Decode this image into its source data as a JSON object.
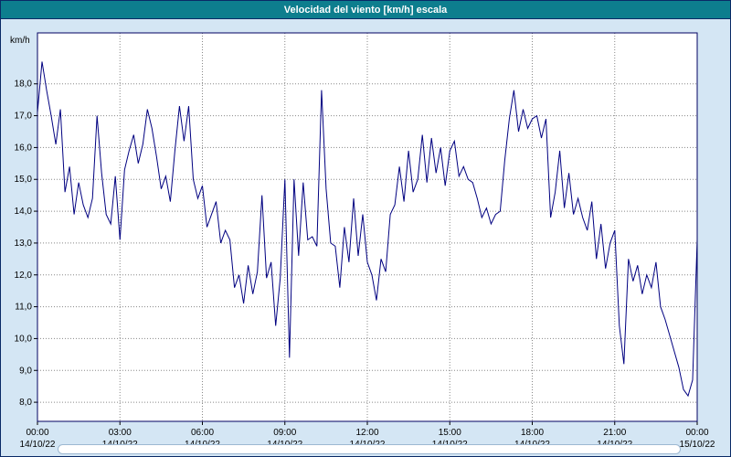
{
  "title": "Velocidad del viento [km/h] escala",
  "y_unit_label": "km/h",
  "colors": {
    "titlebar": "#0d7e8e",
    "titlebar_text": "#ffffff",
    "page_background": "#d4e6f4",
    "plot_background": "#ffffff",
    "line": "#000080",
    "grid": "#888888",
    "plot_border": "#000060",
    "axis_text": "#000000"
  },
  "chart_data": {
    "type": "line",
    "title": "Velocidad del viento [km/h] escala",
    "xlabel": "",
    "ylabel": "km/h",
    "grid": true,
    "legend_position": "none",
    "x_hours_start": 0,
    "x_hours_end": 24,
    "sample_interval_minutes": 10,
    "ylim": [
      7.4,
      19.6
    ],
    "y_ticks": [
      8,
      9,
      10,
      11,
      12,
      13,
      14,
      15,
      16,
      17,
      18
    ],
    "y_tick_labels": [
      "8,0",
      "9,0",
      "10,0",
      "11,0",
      "12,0",
      "13,0",
      "14,0",
      "15,0",
      "16,0",
      "17,0",
      "18,0"
    ],
    "x_ticks_hours": [
      0,
      3,
      6,
      9,
      12,
      15,
      18,
      21,
      24
    ],
    "x_tick_time_labels": [
      "00:00",
      "03:00",
      "06:00",
      "09:00",
      "12:00",
      "15:00",
      "18:00",
      "21:00",
      "00:00"
    ],
    "x_tick_date_labels": [
      "14/10/22",
      "14/10/22",
      "14/10/22",
      "14/10/22",
      "14/10/22",
      "14/10/22",
      "14/10/22",
      "14/10/22",
      "15/10/22"
    ],
    "values": [
      17.1,
      18.7,
      17.8,
      17.0,
      16.1,
      17.2,
      14.6,
      15.4,
      13.9,
      14.9,
      14.2,
      13.8,
      14.4,
      17.0,
      15.2,
      13.9,
      13.6,
      15.1,
      13.1,
      15.3,
      15.9,
      16.4,
      15.5,
      16.1,
      17.2,
      16.6,
      15.7,
      14.7,
      15.1,
      14.3,
      15.9,
      17.3,
      16.2,
      17.3,
      15.0,
      14.4,
      14.8,
      13.5,
      13.9,
      14.3,
      13.0,
      13.4,
      13.1,
      11.6,
      12.0,
      11.1,
      12.3,
      11.4,
      12.1,
      14.5,
      11.9,
      12.4,
      10.4,
      11.9,
      15.0,
      9.4,
      15.0,
      12.6,
      14.9,
      13.1,
      13.2,
      12.9,
      17.8,
      14.7,
      13.0,
      12.9,
      11.6,
      13.5,
      12.4,
      14.4,
      12.6,
      13.9,
      12.4,
      12.0,
      11.2,
      12.5,
      12.1,
      13.9,
      14.2,
      15.4,
      14.3,
      15.9,
      14.6,
      15.0,
      16.4,
      14.9,
      16.3,
      15.2,
      16.0,
      14.8,
      15.9,
      16.2,
      15.1,
      15.4,
      15.0,
      14.9,
      14.4,
      13.8,
      14.1,
      13.6,
      13.9,
      14.0,
      15.6,
      16.9,
      17.8,
      16.5,
      17.2,
      16.6,
      16.9,
      17.0,
      16.3,
      16.9,
      13.8,
      14.6,
      15.9,
      14.1,
      15.2,
      13.9,
      14.4,
      13.8,
      13.4,
      14.3,
      12.5,
      13.6,
      12.2,
      13.0,
      13.4,
      10.4,
      9.2,
      12.5,
      11.8,
      12.3,
      11.4,
      12.0,
      11.6,
      12.4,
      11.0,
      10.6,
      10.1,
      9.6,
      9.1,
      8.4,
      8.2,
      8.7,
      13.1
    ]
  }
}
